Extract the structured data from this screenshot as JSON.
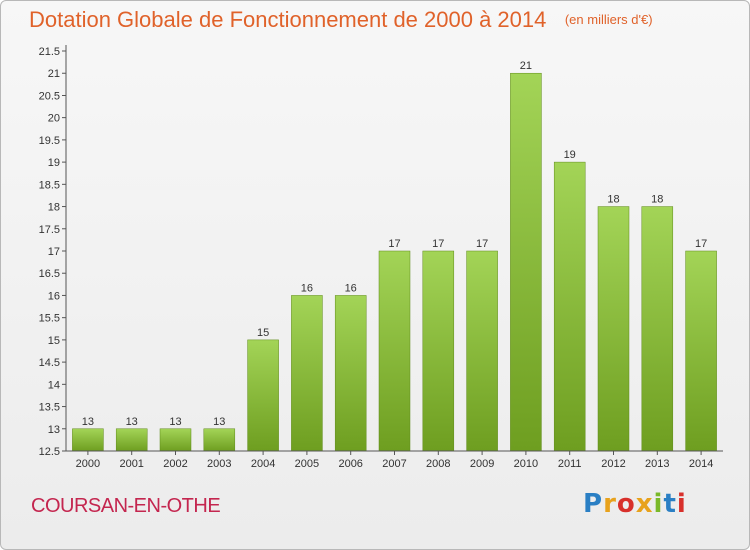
{
  "title": "Dotation Globale de Fonctionnement de 2000 à 2014",
  "subtitle": "(en milliers d'€)",
  "commune": "COURSAN-EN-OTHE",
  "logo": "Proxiti",
  "colors": {
    "title": "#e0622a",
    "commune": "#c4264f",
    "bar_light": "#a3d457",
    "bar_dark": "#6e9e20"
  },
  "chart_data": {
    "type": "bar",
    "categories": [
      "2000",
      "2001",
      "2002",
      "2003",
      "2004",
      "2005",
      "2006",
      "2007",
      "2008",
      "2009",
      "2010",
      "2011",
      "2012",
      "2013",
      "2014"
    ],
    "values": [
      13,
      13,
      13,
      13,
      15,
      16,
      16,
      17,
      17,
      17,
      21,
      19,
      18,
      18,
      17
    ],
    "data_labels": [
      "13",
      "13",
      "13",
      "13",
      "15",
      "16",
      "16",
      "17",
      "17",
      "17",
      "21",
      "19",
      "18",
      "18",
      "17"
    ],
    "title": "Dotation Globale de Fonctionnement de 2000 à 2014",
    "xlabel": "",
    "ylabel": "",
    "ylim": [
      12.5,
      21.5
    ],
    "yticks": [
      12.5,
      13,
      13.5,
      14,
      14.5,
      15,
      15.5,
      16,
      16.5,
      17,
      17.5,
      18,
      18.5,
      19,
      19.5,
      20,
      20.5,
      21,
      21.5
    ],
    "ytick_labels": [
      "12.5",
      "13",
      "13.5",
      "14",
      "14.5",
      "15",
      "15.5",
      "16",
      "16.5",
      "17",
      "17.5",
      "18",
      "18.5",
      "19",
      "19.5",
      "20",
      "20.5",
      "21",
      "21.5"
    ],
    "grid": false,
    "legend": "none"
  }
}
